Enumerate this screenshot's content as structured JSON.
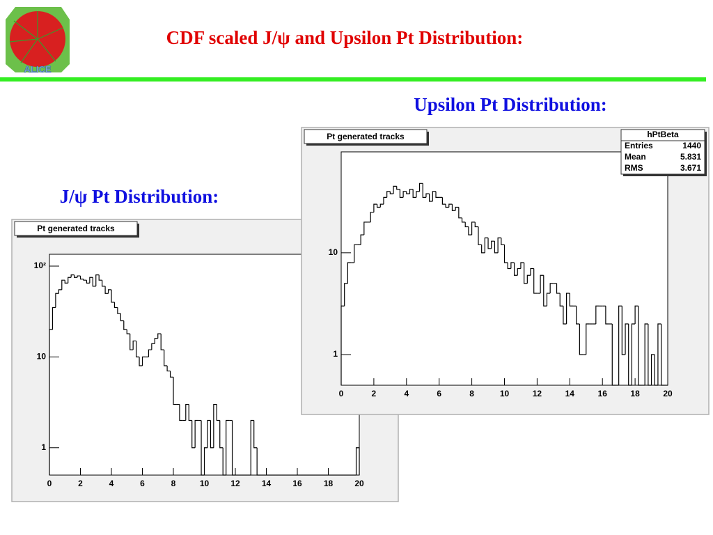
{
  "title": "CDF scaled  J/ψ  and Upsilon Pt Distribution:",
  "logo_text": "ALICE",
  "chart_data": [
    {
      "type": "histogram",
      "heading": "J/ψ  Pt Distribution:",
      "title": "Pt generated tracks",
      "bins": [
        0,
        0.2,
        0.4,
        0.6,
        0.8,
        1,
        1.2,
        1.4,
        1.6,
        1.8,
        2,
        2.2,
        2.4,
        2.6,
        2.8,
        3,
        3.2,
        3.4,
        3.6,
        3.8,
        4,
        4.2,
        4.4,
        4.6,
        4.8,
        5,
        5.2,
        5.4,
        5.6,
        5.8,
        6,
        6.2,
        6.4,
        6.6,
        6.8,
        7,
        7.2,
        7.4,
        7.6,
        7.8,
        8,
        8.2,
        8.4,
        8.6,
        8.8,
        9,
        9.2,
        9.4,
        9.6,
        9.8,
        10,
        10.2,
        10.4,
        10.6,
        10.8,
        11,
        11.2,
        11.4,
        11.6,
        11.8,
        12,
        12.2,
        12.4,
        12.6,
        12.8,
        13,
        13.2,
        13.4,
        13.6,
        13.8,
        14,
        14.2,
        14.4,
        14.6,
        14.8,
        15,
        15.2,
        15.4,
        15.6,
        15.8,
        16,
        16.2,
        16.4,
        16.6,
        16.8,
        17,
        17.2,
        17.4,
        17.6,
        17.8,
        18,
        18.2,
        18.4,
        18.6,
        18.8,
        19,
        19.2,
        19.4,
        19.6,
        19.8,
        20
      ],
      "values": [
        20,
        35,
        50,
        55,
        70,
        65,
        75,
        80,
        75,
        78,
        72,
        70,
        65,
        75,
        60,
        80,
        70,
        60,
        50,
        55,
        40,
        35,
        30,
        25,
        20,
        18,
        12,
        15,
        10,
        8,
        10,
        10,
        12,
        14,
        16,
        18,
        12,
        8,
        7,
        6,
        3,
        3,
        2,
        2,
        3,
        2,
        1,
        2,
        2,
        0,
        1,
        2,
        1,
        3,
        2,
        1,
        0,
        2,
        2,
        0,
        0,
        0,
        0,
        0,
        0,
        2,
        1,
        0,
        0,
        0,
        0,
        0,
        0,
        0,
        0,
        0,
        0,
        0,
        0,
        0,
        0,
        0,
        0,
        0,
        0,
        0,
        0,
        0,
        0,
        0,
        0,
        0,
        0,
        0,
        0,
        0,
        0,
        0,
        0,
        1
      ],
      "color": "#000000",
      "log_y": true,
      "xlim": [
        0,
        20
      ],
      "xticks": [
        0,
        2,
        4,
        6,
        8,
        10,
        12,
        14,
        16,
        18,
        20
      ],
      "ylim": [
        0.5,
        135
      ],
      "yticks": [
        1,
        10,
        {
          "value": 100,
          "label": "10²"
        }
      ]
    },
    {
      "type": "histogram",
      "heading": "Upsilon Pt Distribution:",
      "title": "Pt generated tracks",
      "bins": [
        0,
        0.2,
        0.4,
        0.6,
        0.8,
        1,
        1.2,
        1.4,
        1.6,
        1.8,
        2,
        2.2,
        2.4,
        2.6,
        2.8,
        3,
        3.2,
        3.4,
        3.6,
        3.8,
        4,
        4.2,
        4.4,
        4.6,
        4.8,
        5,
        5.2,
        5.4,
        5.6,
        5.8,
        6,
        6.2,
        6.4,
        6.6,
        6.8,
        7,
        7.2,
        7.4,
        7.6,
        7.8,
        8,
        8.2,
        8.4,
        8.6,
        8.8,
        9,
        9.2,
        9.4,
        9.6,
        9.8,
        10,
        10.2,
        10.4,
        10.6,
        10.8,
        11,
        11.2,
        11.4,
        11.6,
        11.8,
        12,
        12.2,
        12.4,
        12.6,
        12.8,
        13,
        13.2,
        13.4,
        13.6,
        13.8,
        14,
        14.2,
        14.4,
        14.6,
        14.8,
        15,
        15.2,
        15.4,
        15.6,
        15.8,
        16,
        16.2,
        16.4,
        16.6,
        16.8,
        17,
        17.2,
        17.4,
        17.6,
        17.8,
        18,
        18.2,
        18.4,
        18.6,
        18.8,
        19,
        19.2,
        19.4,
        19.6,
        19.8,
        20
      ],
      "values": [
        3,
        5,
        8,
        8,
        12,
        12,
        15,
        20,
        20,
        25,
        30,
        28,
        30,
        35,
        40,
        38,
        45,
        42,
        35,
        40,
        38,
        42,
        35,
        40,
        48,
        35,
        38,
        32,
        40,
        35,
        35,
        30,
        28,
        30,
        26,
        28,
        22,
        20,
        18,
        15,
        20,
        18,
        12,
        10,
        14,
        11,
        13,
        10,
        14,
        12,
        8,
        7,
        8,
        6,
        7,
        8,
        5,
        6,
        7,
        4,
        4,
        6,
        3,
        4,
        5,
        5,
        4,
        3,
        2,
        4,
        3,
        3,
        2,
        1,
        1,
        2,
        2,
        2,
        3,
        3,
        3,
        2,
        2,
        0,
        0,
        3,
        1,
        2,
        0,
        2,
        3,
        0,
        0,
        2,
        0,
        1,
        0,
        2,
        0,
        0
      ],
      "color": "#000000",
      "log_y": true,
      "xlim": [
        0,
        20
      ],
      "xticks": [
        0,
        2,
        4,
        6,
        8,
        10,
        12,
        14,
        16,
        18,
        20
      ],
      "ylim": [
        0.5,
        98
      ],
      "yticks": [
        1,
        10
      ],
      "stats": {
        "name": "hPtBeta",
        "rows": [
          [
            "Entries",
            1440
          ],
          [
            "Mean",
            5.831
          ],
          [
            "RMS",
            3.671
          ]
        ]
      }
    }
  ]
}
